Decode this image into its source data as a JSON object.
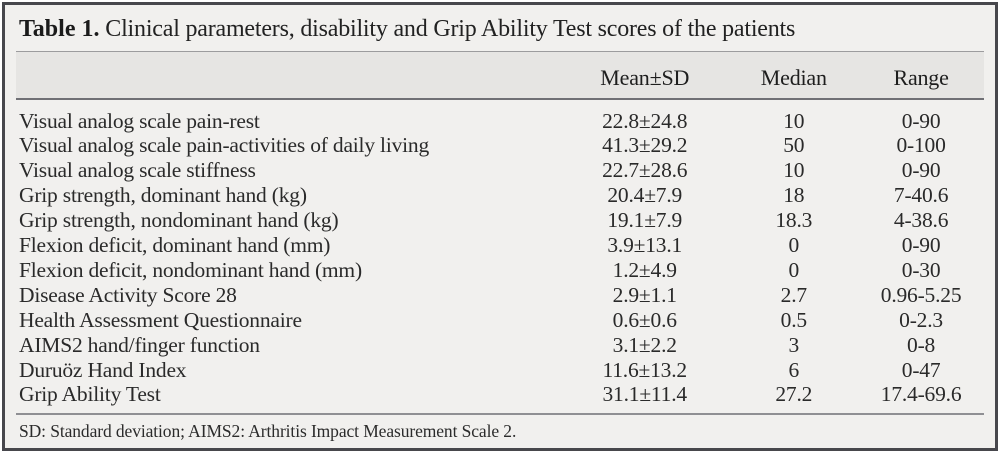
{
  "table": {
    "title_number": "Table 1.",
    "title_caption": " Clinical parameters, disability and Grip Ability Test scores of the patients",
    "header": {
      "parameter": "",
      "mean_sd": "Mean±SD",
      "median": "Median",
      "range": "Range"
    },
    "rows": [
      {
        "parameter": "Visual analog scale pain-rest",
        "mean_sd": "22.8±24.8",
        "median": "10",
        "range": "0-90"
      },
      {
        "parameter": "Visual analog scale pain-activities of daily living",
        "mean_sd": "41.3±29.2",
        "median": "50",
        "range": "0-100"
      },
      {
        "parameter": "Visual analog scale stiffness",
        "mean_sd": "22.7±28.6",
        "median": "10",
        "range": "0-90"
      },
      {
        "parameter": "Grip strength, dominant hand (kg)",
        "mean_sd": "20.4±7.9",
        "median": "18",
        "range": "7-40.6"
      },
      {
        "parameter": "Grip strength, nondominant hand (kg)",
        "mean_sd": "19.1±7.9",
        "median": "18.3",
        "range": "4-38.6"
      },
      {
        "parameter": "Flexion deficit, dominant hand (mm)",
        "mean_sd": "3.9±13.1",
        "median": "0",
        "range": "0-90"
      },
      {
        "parameter": "Flexion deficit, nondominant hand (mm)",
        "mean_sd": "1.2±4.9",
        "median": "0",
        "range": "0-30"
      },
      {
        "parameter": "Disease Activity Score 28",
        "mean_sd": "2.9±1.1",
        "median": "2.7",
        "range": "0.96-5.25"
      },
      {
        "parameter": "Health Assessment Questionnaire",
        "mean_sd": "0.6±0.6",
        "median": "0.5",
        "range": "0-2.3"
      },
      {
        "parameter": "AIMS2 hand/finger function",
        "mean_sd": "3.1±2.2",
        "median": "3",
        "range": "0-8"
      },
      {
        "parameter": "Duruöz Hand Index",
        "mean_sd": "11.6±13.2",
        "median": "6",
        "range": "0-47"
      },
      {
        "parameter": "Grip Ability Test",
        "mean_sd": "31.1±11.4",
        "median": "27.2",
        "range": "17.4-69.6"
      }
    ],
    "footnote": "SD: Standard deviation; AIMS2: Arthritis Impact Measurement Scale 2."
  },
  "colors": {
    "panel_bg": "#f1f0ee",
    "band_bg": "#e6e5e3",
    "border": "#47474c",
    "text": "#2a2a2a"
  }
}
